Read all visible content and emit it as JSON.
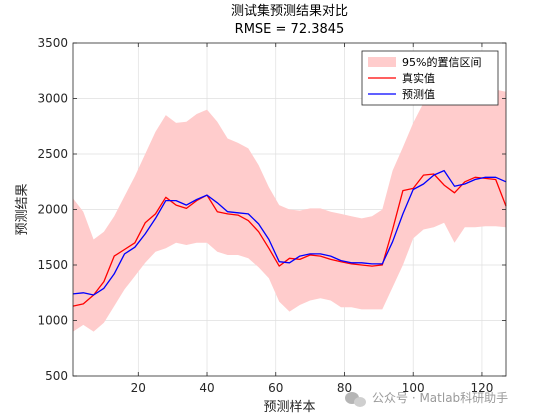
{
  "chart_data": {
    "type": "line",
    "title": "测试集预测结果对比",
    "subtitle": "RMSE = 72.3845",
    "xlabel": "预测样本",
    "ylabel": "预测结果",
    "xlim": [
      1,
      127
    ],
    "ylim": [
      500,
      3500
    ],
    "xticks": [
      20,
      40,
      60,
      80,
      100,
      120
    ],
    "yticks": [
      500,
      1000,
      1500,
      2000,
      2500,
      3000,
      3500
    ],
    "grid": true,
    "legend_position": "top-right",
    "legend": [
      {
        "label": "95%的置信区间",
        "kind": "patch"
      },
      {
        "label": "真实值",
        "kind": "line"
      },
      {
        "label": "预测值",
        "kind": "line"
      }
    ],
    "colors": {
      "band": "#ffcccc",
      "actual": "#ff0000",
      "predicted": "#0000ff",
      "grid": "#dfdfdf",
      "axis": "#262626"
    },
    "series": [
      {
        "name": "真实值",
        "x": [
          1,
          4,
          7,
          10,
          13,
          16,
          19,
          22,
          25,
          28,
          31,
          34,
          37,
          40,
          43,
          46,
          49,
          52,
          55,
          58,
          61,
          64,
          67,
          70,
          73,
          76,
          79,
          82,
          85,
          88,
          91,
          94,
          97,
          100,
          103,
          106,
          109,
          112,
          115,
          118,
          121,
          124,
          127
        ],
        "values": [
          1130,
          1150,
          1230,
          1350,
          1580,
          1640,
          1700,
          1880,
          1960,
          2110,
          2040,
          2010,
          2080,
          2130,
          1980,
          1960,
          1950,
          1900,
          1800,
          1650,
          1490,
          1560,
          1550,
          1590,
          1580,
          1550,
          1530,
          1510,
          1500,
          1490,
          1500,
          1820,
          2170,
          2190,
          2310,
          2320,
          2220,
          2150,
          2250,
          2290,
          2280,
          2270,
          2030
        ]
      },
      {
        "name": "预测值",
        "x": [
          1,
          4,
          7,
          10,
          13,
          16,
          19,
          22,
          25,
          28,
          31,
          34,
          37,
          40,
          43,
          46,
          49,
          52,
          55,
          58,
          61,
          64,
          67,
          70,
          73,
          76,
          79,
          82,
          85,
          88,
          91,
          94,
          97,
          100,
          103,
          106,
          109,
          112,
          115,
          118,
          121,
          124,
          127
        ],
        "values": [
          1240,
          1250,
          1230,
          1290,
          1420,
          1600,
          1660,
          1780,
          1920,
          2080,
          2080,
          2040,
          2090,
          2130,
          2060,
          1980,
          1970,
          1960,
          1870,
          1730,
          1530,
          1520,
          1580,
          1600,
          1600,
          1580,
          1540,
          1520,
          1520,
          1510,
          1510,
          1710,
          1960,
          2180,
          2230,
          2310,
          2350,
          2210,
          2230,
          2270,
          2290,
          2290,
          2250
        ]
      },
      {
        "name": "95%的置信区间",
        "x": [
          1,
          4,
          7,
          10,
          13,
          16,
          19,
          22,
          25,
          28,
          31,
          34,
          37,
          40,
          43,
          46,
          49,
          52,
          55,
          58,
          61,
          64,
          67,
          70,
          73,
          76,
          79,
          82,
          85,
          88,
          91,
          94,
          97,
          100,
          103,
          106,
          109,
          112,
          115,
          118,
          121,
          124,
          127
        ],
        "upper": [
          2100,
          1980,
          1730,
          1800,
          1940,
          2120,
          2300,
          2500,
          2700,
          2850,
          2780,
          2790,
          2860,
          2900,
          2790,
          2640,
          2600,
          2550,
          2400,
          2200,
          2040,
          2000,
          1990,
          2010,
          2010,
          1980,
          1960,
          1940,
          1920,
          1940,
          2000,
          2350,
          2560,
          2780,
          2960,
          3100,
          3200,
          3060,
          2960,
          3050,
          3080,
          3080,
          3060
        ],
        "lower": [
          900,
          960,
          900,
          980,
          1130,
          1280,
          1400,
          1520,
          1620,
          1650,
          1700,
          1680,
          1700,
          1700,
          1620,
          1590,
          1590,
          1560,
          1480,
          1380,
          1170,
          1080,
          1140,
          1180,
          1200,
          1180,
          1120,
          1120,
          1100,
          1100,
          1100,
          1300,
          1500,
          1740,
          1820,
          1840,
          1880,
          1700,
          1840,
          1840,
          1850,
          1850,
          1840
        ]
      }
    ]
  },
  "watermark": {
    "text": "公众号 · Matlab科研助手"
  }
}
